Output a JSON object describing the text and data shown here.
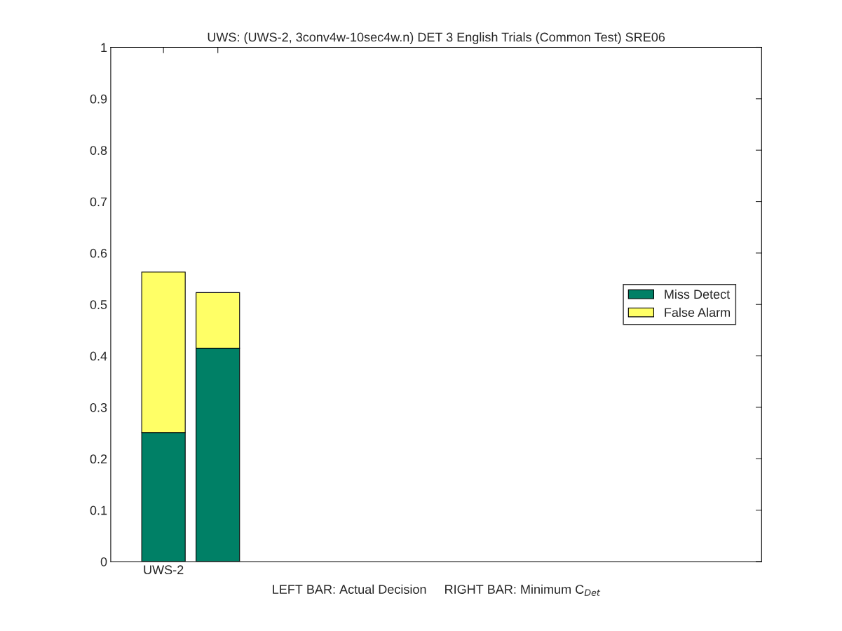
{
  "chart_data": {
    "type": "bar",
    "title": "UWS: (UWS-2, 3conv4w-10sec4w.n) DET 3 English Trials (Common Test) SRE06",
    "xlabel": "LEFT BAR: Actual Decision     RIGHT BAR: Minimum C$_{Det}$",
    "categories": [
      "UWS-2",
      null
    ],
    "stacked": true,
    "series": [
      {
        "name": "Miss Detect",
        "color": "#008066",
        "values": [
          0.251,
          0.415
        ]
      },
      {
        "name": "False Alarm",
        "color": "#ffff66",
        "values": [
          0.312,
          0.108
        ]
      }
    ],
    "ylim": [
      0,
      1
    ],
    "yticks": [
      0,
      0.1,
      0.2,
      0.3,
      0.4,
      0.5,
      0.6,
      0.7,
      0.8,
      0.9,
      1
    ],
    "grid": false,
    "legend": "right"
  }
}
